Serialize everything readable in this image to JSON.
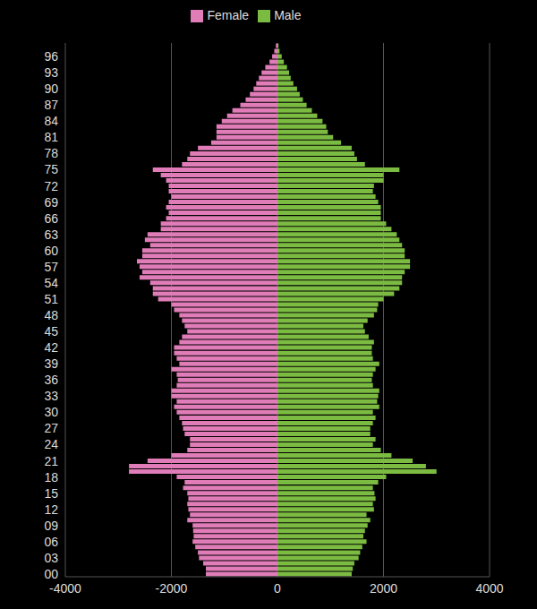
{
  "chart_data": {
    "type": "bar",
    "orientation": "horizontal",
    "stacked": true,
    "grid": true,
    "legend": "top",
    "categories": [
      "00",
      null,
      null,
      "03",
      null,
      null,
      "06",
      null,
      null,
      "09",
      null,
      null,
      "12",
      null,
      null,
      "15",
      null,
      null,
      "18",
      null,
      null,
      "21",
      null,
      null,
      "24",
      null,
      null,
      "27",
      null,
      null,
      "30",
      null,
      null,
      "33",
      null,
      null,
      "36",
      null,
      null,
      "39",
      null,
      null,
      "42",
      null,
      null,
      "45",
      null,
      null,
      "48",
      null,
      null,
      "51",
      null,
      null,
      "54",
      null,
      null,
      "57",
      null,
      null,
      "60",
      null,
      null,
      "63",
      null,
      null,
      "66",
      null,
      null,
      "69",
      null,
      null,
      "72",
      null,
      null,
      "75",
      null,
      null,
      "78",
      null,
      null,
      "81",
      null,
      null,
      "84",
      null,
      null,
      "87",
      null,
      null,
      "90",
      null,
      null,
      "93",
      null,
      null,
      "96",
      null,
      null
    ],
    "xlim": [
      -4000,
      4000
    ],
    "xticks": [
      -4000,
      -2000,
      0,
      2000,
      4000
    ],
    "series": [
      {
        "name": "Female",
        "color": "#e07cb8",
        "values": [
          -1350,
          -1350,
          -1400,
          -1480,
          -1500,
          -1550,
          -1600,
          -1580,
          -1590,
          -1600,
          -1700,
          -1650,
          -1680,
          -1700,
          -1680,
          -1700,
          -1780,
          -1750,
          -1900,
          -2800,
          -2800,
          -2450,
          -2000,
          -1700,
          -1650,
          -1650,
          -1750,
          -1780,
          -1800,
          -1850,
          -1900,
          -1950,
          -1900,
          -2000,
          -2000,
          -1900,
          -1880,
          -1900,
          -2000,
          -1850,
          -1900,
          -1950,
          -1950,
          -1850,
          -1800,
          -1700,
          -1750,
          -1800,
          -1850,
          -1950,
          -2000,
          -2250,
          -2350,
          -2350,
          -2400,
          -2600,
          -2550,
          -2600,
          -2650,
          -2550,
          -2550,
          -2400,
          -2500,
          -2450,
          -2200,
          -2200,
          -2100,
          -2050,
          -2100,
          -2050,
          -2000,
          -2050,
          -2050,
          -2100,
          -2200,
          -2350,
          -1800,
          -1700,
          -1650,
          -1500,
          -1250,
          -1150,
          -1150,
          -1150,
          -1050,
          -950,
          -850,
          -700,
          -600,
          -520,
          -450,
          -400,
          -350,
          -300,
          -230,
          -150,
          -100,
          -60,
          -30
        ]
      },
      {
        "name": "Male",
        "color": "#7cbb42",
        "values": [
          1400,
          1420,
          1450,
          1530,
          1560,
          1600,
          1680,
          1620,
          1650,
          1700,
          1750,
          1680,
          1820,
          1800,
          1850,
          1830,
          1800,
          1900,
          2050,
          3000,
          2800,
          2550,
          2150,
          1950,
          1800,
          1850,
          1750,
          1750,
          1800,
          1850,
          1800,
          1920,
          1880,
          1900,
          1920,
          1800,
          1780,
          1800,
          1850,
          1920,
          1800,
          1780,
          1780,
          1820,
          1720,
          1650,
          1620,
          1700,
          1820,
          1880,
          1900,
          2000,
          2200,
          2300,
          2350,
          2350,
          2400,
          2500,
          2500,
          2400,
          2400,
          2350,
          2300,
          2250,
          2150,
          2050,
          1950,
          1950,
          1950,
          1900,
          1850,
          1800,
          1820,
          2000,
          2000,
          2300,
          1650,
          1500,
          1450,
          1400,
          1200,
          1050,
          950,
          920,
          850,
          750,
          650,
          550,
          480,
          420,
          370,
          300,
          250,
          220,
          180,
          120,
          80,
          40,
          20
        ]
      }
    ]
  }
}
